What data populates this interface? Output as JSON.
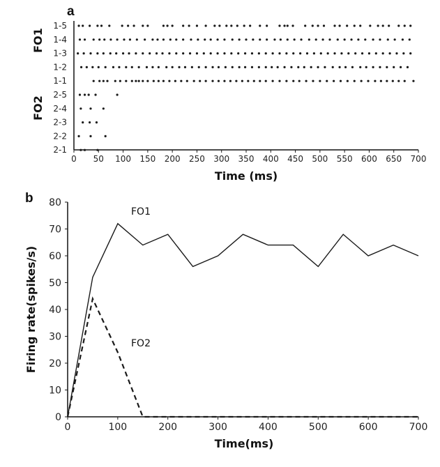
{
  "chart_data": [
    {
      "type": "scatter",
      "panel_label": "a",
      "xlabel": "Time (ms)",
      "xlim": [
        0,
        700
      ],
      "xticks": [
        0,
        50,
        100,
        150,
        200,
        250,
        300,
        350,
        400,
        450,
        500,
        550,
        600,
        650,
        700
      ],
      "groups": [
        {
          "name": "FO1",
          "rows": [
            "1-5",
            "1-4",
            "1-3",
            "1-2",
            "1-1"
          ]
        },
        {
          "name": "FO2",
          "rows": [
            "2-5",
            "2-4",
            "2-3",
            "2-2",
            "2-1"
          ]
        }
      ],
      "rows": [
        {
          "label": "1-5",
          "spikes": [
            10,
            18,
            32,
            48,
            56,
            72,
            98,
            110,
            122,
            140,
            150,
            182,
            190,
            200,
            222,
            234,
            250,
            268,
            286,
            296,
            310,
            320,
            332,
            346,
            358,
            378,
            392,
            418,
            428,
            434,
            445,
            470,
            485,
            496,
            508,
            530,
            540,
            555,
            570,
            582,
            602,
            618,
            628,
            640,
            660,
            672,
            684
          ]
        },
        {
          "label": "1-4",
          "spikes": [
            12,
            22,
            40,
            52,
            62,
            75,
            88,
            102,
            114,
            128,
            144,
            160,
            170,
            182,
            196,
            208,
            222,
            238,
            252,
            266,
            278,
            292,
            306,
            322,
            336,
            350,
            364,
            378,
            392,
            408,
            420,
            434,
            448,
            462,
            478,
            492,
            506,
            520,
            536,
            550,
            564,
            578,
            592,
            608,
            622,
            638,
            652,
            668,
            682
          ]
        },
        {
          "label": "1-3",
          "spikes": [
            8,
            20,
            34,
            48,
            60,
            74,
            86,
            100,
            112,
            126,
            140,
            154,
            168,
            180,
            194,
            208,
            222,
            236,
            250,
            264,
            278,
            292,
            306,
            320,
            334,
            348,
            362,
            376,
            390,
            404,
            418,
            432,
            446,
            460,
            474,
            488,
            502,
            516,
            530,
            544,
            558,
            572,
            586,
            600,
            614,
            628,
            642,
            656,
            670,
            684
          ]
        },
        {
          "label": "1-2",
          "spikes": [
            15,
            26,
            38,
            50,
            64,
            80,
            92,
            106,
            118,
            132,
            148,
            160,
            172,
            188,
            200,
            214,
            226,
            240,
            254,
            268,
            282,
            294,
            308,
            322,
            336,
            348,
            362,
            376,
            390,
            402,
            414,
            428,
            442,
            456,
            468,
            482,
            496,
            510,
            526,
            540,
            552,
            566,
            582,
            594,
            608,
            622,
            636,
            650,
            664,
            678
          ]
        },
        {
          "label": "1-1",
          "spikes": [
            40,
            52,
            60,
            68,
            84,
            94,
            106,
            118,
            126,
            132,
            140,
            150,
            162,
            172,
            182,
            194,
            206,
            218,
            230,
            244,
            256,
            268,
            282,
            294,
            306,
            318,
            330,
            342,
            354,
            366,
            378,
            390,
            404,
            418,
            432,
            446,
            458,
            472,
            486,
            500,
            514,
            528,
            542,
            556,
            570,
            584,
            598,
            612,
            624,
            636,
            648,
            660,
            672,
            690
          ]
        },
        {
          "label": "2-5",
          "spikes": [
            12,
            22,
            30,
            44,
            88
          ]
        },
        {
          "label": "2-4",
          "spikes": [
            14,
            34,
            60
          ]
        },
        {
          "label": "2-3",
          "spikes": [
            18,
            32,
            46
          ]
        },
        {
          "label": "2-2",
          "spikes": [
            10,
            34,
            64
          ]
        },
        {
          "label": "2-1",
          "spikes": [
            14,
            22,
            48
          ]
        }
      ]
    },
    {
      "type": "line",
      "panel_label": "b",
      "xlabel": "Time(ms)",
      "ylabel": "Firing rate(spikes/s)",
      "xlim": [
        0,
        700
      ],
      "ylim": [
        0,
        80
      ],
      "xticks": [
        0,
        100,
        200,
        300,
        400,
        500,
        600,
        700
      ],
      "yticks": [
        0,
        10,
        20,
        30,
        40,
        50,
        60,
        70,
        80
      ],
      "series": [
        {
          "name": "FO1",
          "style": "solid",
          "x": [
            0,
            50,
            100,
            150,
            200,
            250,
            300,
            350,
            400,
            450,
            500,
            550,
            600,
            650,
            700
          ],
          "y": [
            0,
            52,
            72,
            64,
            68,
            56,
            60,
            68,
            64,
            64,
            56,
            68,
            60,
            64,
            60
          ]
        },
        {
          "name": "FO2",
          "style": "dashed",
          "x": [
            0,
            50,
            100,
            150,
            200,
            250,
            300,
            350,
            400,
            450,
            500,
            550,
            600,
            650,
            700
          ],
          "y": [
            0,
            44,
            24,
            0,
            0,
            0,
            0,
            0,
            0,
            0,
            0,
            0,
            0,
            0,
            0
          ]
        }
      ]
    }
  ],
  "colors": {
    "ink": "#1a1a1a"
  }
}
